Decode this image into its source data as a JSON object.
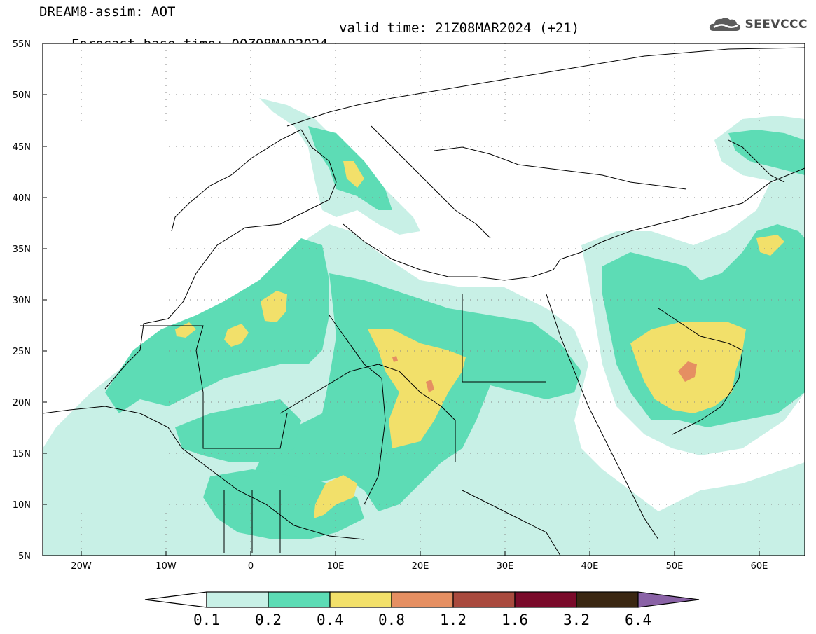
{
  "header": {
    "model_line": "DREAM8-assim: AOT",
    "base_time": "Forecast base time: 00Z08MAR2024",
    "valid_time": "valid time: 21Z08MAR2024 (+21)"
  },
  "logo": {
    "text": "SEEVCCC",
    "icon": "cloud-icon"
  },
  "axes": {
    "lat_labels": [
      "55N",
      "50N",
      "45N",
      "40N",
      "35N",
      "30N",
      "25N",
      "20N",
      "15N",
      "10N",
      "5N"
    ],
    "lon_labels": [
      "20W",
      "10W",
      "0",
      "10E",
      "20E",
      "30E",
      "40E",
      "50E",
      "60E"
    ]
  },
  "legend": {
    "colors": [
      "#ffffff",
      "#c8f0e6",
      "#5ddcb5",
      "#f2e06a",
      "#e58f62",
      "#a94a3e",
      "#7a0a2a",
      "#3a2712",
      "#8a62a6"
    ],
    "labels": [
      "0.1",
      "0.2",
      "0.4",
      "0.8",
      "1.2",
      "1.6",
      "3.2",
      "6.4"
    ]
  }
}
